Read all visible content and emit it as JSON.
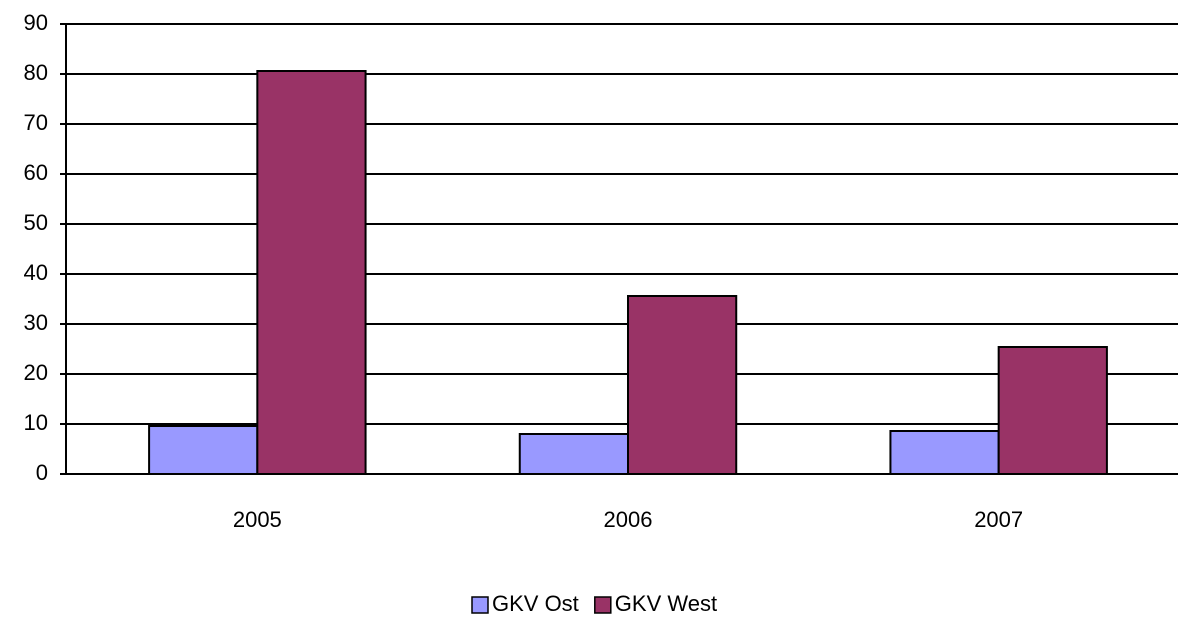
{
  "chart_data": {
    "type": "bar",
    "categories": [
      "2005",
      "2006",
      "2007"
    ],
    "series": [
      {
        "name": "GKV Ost",
        "color": "#9999ff",
        "values": [
          9.6,
          8.0,
          8.6
        ]
      },
      {
        "name": "GKV West",
        "color": "#993366",
        "values": [
          80.6,
          35.6,
          25.4
        ]
      }
    ],
    "ylim": [
      0,
      90
    ],
    "yticks": [
      0,
      10,
      20,
      30,
      40,
      50,
      60,
      70,
      80,
      90
    ],
    "grid": true,
    "legend": "bottom"
  }
}
